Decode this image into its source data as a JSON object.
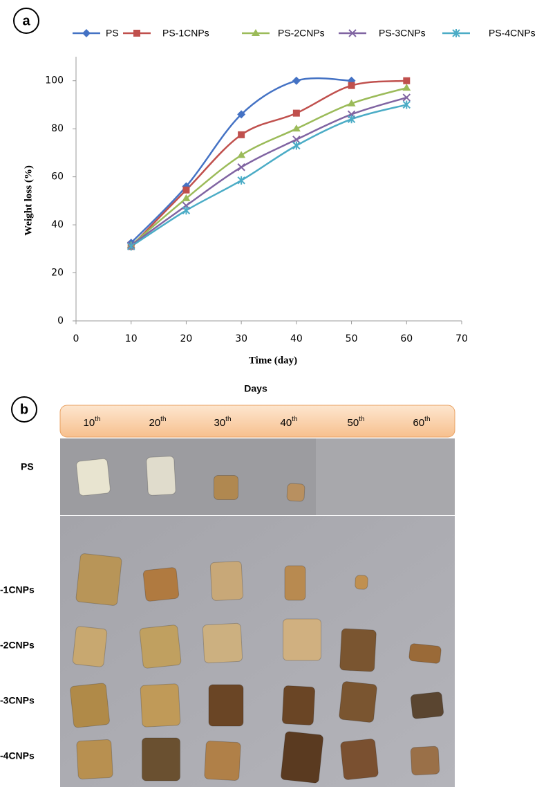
{
  "panel_labels": [
    "a",
    "b"
  ],
  "chart_data": {
    "type": "line",
    "x_label": "Time (day)",
    "y_label": "Weight loss (%)",
    "x": [
      10,
      20,
      30,
      40,
      50,
      60
    ],
    "xlim": [
      0,
      70
    ],
    "xticks": [
      0,
      10,
      20,
      30,
      40,
      50,
      60,
      70
    ],
    "ylim": [
      0,
      110
    ],
    "yticks": [
      0,
      20,
      40,
      60,
      80,
      100
    ],
    "legend": "top",
    "smooth": true,
    "series": [
      {
        "name": "PS",
        "color": "#4472c4",
        "marker": "diamond",
        "values": [
          32.5,
          56,
          86,
          100,
          100,
          null
        ]
      },
      {
        "name": "PS-1CNPs",
        "color": "#c0504d",
        "marker": "square",
        "values": [
          31,
          54.5,
          77.5,
          86.5,
          98,
          100
        ]
      },
      {
        "name": "PS-2CNPs",
        "color": "#9bbb59",
        "marker": "triangle",
        "values": [
          31.5,
          51,
          69,
          80,
          90.5,
          97
        ]
      },
      {
        "name": "PS-3CNPs",
        "color": "#8064a2",
        "marker": "x",
        "values": [
          31.5,
          48,
          64,
          75.5,
          86,
          93
        ]
      },
      {
        "name": "PS-4CNPs",
        "color": "#4bacc6",
        "marker": "star",
        "values": [
          31,
          46,
          58.5,
          73,
          84,
          90
        ]
      }
    ]
  },
  "photo_panel": {
    "title": "Days",
    "columns": [
      {
        "number": "10",
        "suffix": "th"
      },
      {
        "number": "20",
        "suffix": "th"
      },
      {
        "number": "30",
        "suffix": "th"
      },
      {
        "number": "40",
        "suffix": "th"
      },
      {
        "number": "50",
        "suffix": "th"
      },
      {
        "number": "60",
        "suffix": "th"
      }
    ],
    "rows": [
      "PS",
      "-1CNPs",
      "-2CNPs",
      "-3CNPs",
      "-4CNPs"
    ]
  }
}
